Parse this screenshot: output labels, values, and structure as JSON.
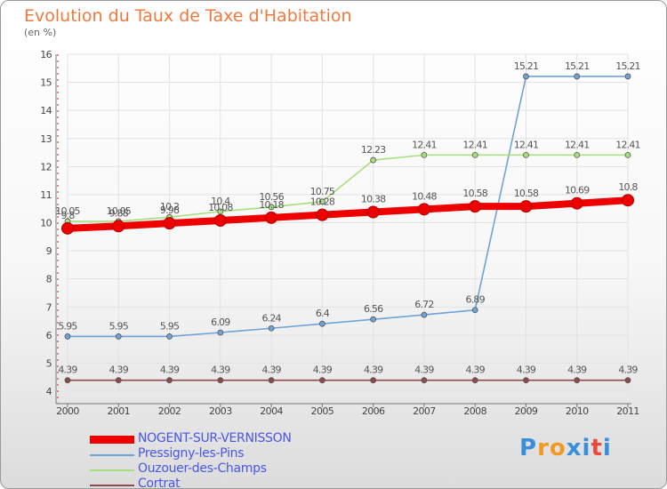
{
  "header": {
    "title": "Evolution du Taux de Taxe d'Habitation",
    "subtitle": "(en %)"
  },
  "logo": {
    "letters": [
      "P",
      "r",
      "o",
      "x",
      "i",
      "t",
      "i"
    ],
    "colors": [
      "#3a8fd8",
      "#f29a1f",
      "#f29a1f",
      "#3a8fd8",
      "#3a8fd8",
      "#e84a3c",
      "#3a8fd8"
    ]
  },
  "chart_data": {
    "type": "line",
    "title": "Evolution du Taux de Taxe d'Habitation",
    "ylabel": "(en %)",
    "xlabel": "",
    "x": [
      "2000",
      "2001",
      "2002",
      "2003",
      "2004",
      "2005",
      "2006",
      "2007",
      "2008",
      "2009",
      "2010",
      "2011"
    ],
    "ylim": [
      4,
      16
    ],
    "yticks": [
      "4",
      "5",
      "6",
      "7",
      "8",
      "9",
      "10",
      "11",
      "12",
      "13",
      "14",
      "15",
      "16"
    ],
    "grid": true,
    "legend_position": "bottom-left",
    "series": [
      {
        "name": "NOGENT-SUR-VERNISSON",
        "color": "#ee0000",
        "values": [
          9.8,
          9.88,
          9.98,
          10.08,
          10.18,
          10.28,
          10.38,
          10.48,
          10.58,
          10.58,
          10.69,
          10.8
        ],
        "labels": [
          "9.8",
          "9.88",
          "9.98",
          "10.08",
          "10.18",
          "10.28",
          "10.38",
          "10.48",
          "10.58",
          "10.58",
          "10.69",
          "10.8"
        ],
        "emphasis": true
      },
      {
        "name": "Pressigny-les-Pins",
        "color": "#6ea3d8",
        "values": [
          5.95,
          5.95,
          5.95,
          6.09,
          6.24,
          6.4,
          6.56,
          6.72,
          6.89,
          15.21,
          15.21,
          15.21
        ],
        "labels": [
          "5.95",
          "5.95",
          "5.95",
          "6.09",
          "6.24",
          "6.4",
          "6.56",
          "6.72",
          "6.89",
          "15.21",
          "15.21",
          "15.21"
        ]
      },
      {
        "name": "Ouzouer-des-Champs",
        "color": "#a6e07e",
        "values": [
          10.05,
          10.05,
          10.2,
          10.4,
          10.56,
          10.75,
          12.23,
          12.41,
          12.41,
          12.41,
          12.41,
          12.41
        ],
        "labels": [
          "10.05",
          "10.05",
          "10.2",
          "10.4",
          "10.56",
          "10.75",
          "12.23",
          "12.41",
          "12.41",
          "12.41",
          "12.41",
          "12.41"
        ]
      },
      {
        "name": "Cortrat",
        "color": "#8e4a4a",
        "values": [
          4.39,
          4.39,
          4.39,
          4.39,
          4.39,
          4.39,
          4.39,
          4.39,
          4.39,
          4.39,
          4.39,
          4.39
        ],
        "labels": [
          "4.39",
          "4.39",
          "4.39",
          "4.39",
          "4.39",
          "4.39",
          "4.39",
          "4.39",
          "4.39",
          "4.39",
          "4.39",
          "4.39"
        ]
      }
    ]
  }
}
